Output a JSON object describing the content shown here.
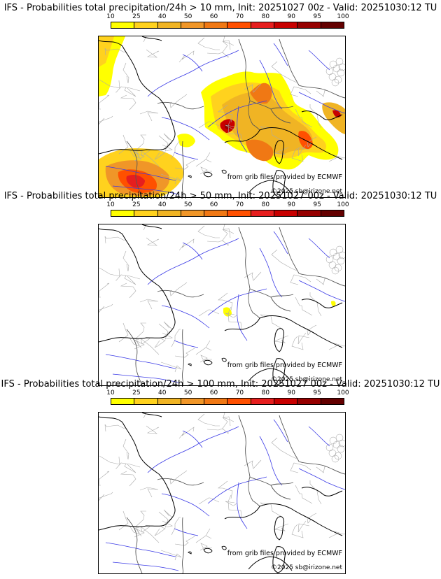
{
  "colorbar": {
    "ticks": [
      "10",
      "25",
      "40",
      "50",
      "60",
      "70",
      "80",
      "90",
      "95",
      "100"
    ],
    "colors": [
      "#ffff00",
      "#ffd21e",
      "#f0b424",
      "#f09628",
      "#f07814",
      "#ff5000",
      "#e61e1e",
      "#c80000",
      "#960000",
      "#640000"
    ]
  },
  "panels": [
    {
      "title": "IFS - Probabilities total precipitation/24h > 10 mm, Init: 20251027 00z - Valid: 20251030:12 TU",
      "source_note": "from grib files provided by ECMWF",
      "copyright": "©2025 sb@irizone.net",
      "shading": "wide"
    },
    {
      "title": "IFS - Probabilities total precipitation/24h > 50 mm, Init: 20251027 00z - Valid: 20251030:12 TU",
      "source_note": "from grib files provided by ECMWF",
      "copyright": "©2025 sb@irizone.net",
      "shading": "spots"
    },
    {
      "title": "IFS - Probabilities total precipitation/24h > 100 mm, Init: 20251027 00z - Valid: 20251030:12 TU",
      "source_note": "from grib files provided by ECMWF",
      "copyright": "©2025 sb@irizone.net",
      "shading": "none"
    }
  ]
}
